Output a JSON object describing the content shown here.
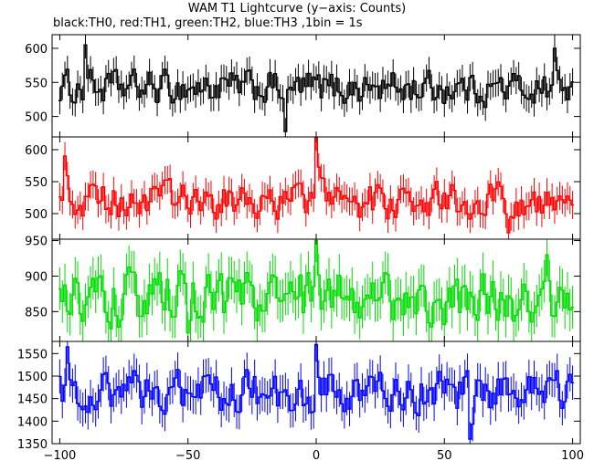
{
  "title": "WAM T1 Lightcurve (y−axis: Counts)",
  "subtitle": "black:TH0, red:TH1, green:TH2, blue:TH3 ,1bin = 1s",
  "chart_data": [
    {
      "type": "line",
      "series_label": "TH0",
      "color": "#000000",
      "xlim": [
        -103,
        103
      ],
      "ylim": [
        470,
        620
      ],
      "yticks": [
        500,
        550,
        600
      ],
      "xticks": [
        -100,
        -50,
        0,
        50,
        100
      ],
      "x_step": 1,
      "x_start": -100,
      "mean": 542,
      "error": 20,
      "error_units": "counts",
      "features": [
        {
          "x": -90,
          "y": 605
        },
        {
          "x": -12,
          "y": 478
        },
        {
          "x": 93,
          "y": 600
        }
      ],
      "grid": false
    },
    {
      "type": "line",
      "series_label": "TH1",
      "color": "#ff0000",
      "xlim": [
        -103,
        103
      ],
      "ylim": [
        460,
        620
      ],
      "yticks": [
        500,
        550,
        600
      ],
      "xticks": [
        -100,
        -50,
        0,
        50,
        100
      ],
      "x_step": 1,
      "x_start": -100,
      "mean": 520,
      "error": 22,
      "error_units": "counts",
      "features": [
        {
          "x": -98,
          "y": 590
        },
        {
          "x": 0,
          "y": 620
        },
        {
          "x": 75,
          "y": 470
        }
      ],
      "grid": false
    },
    {
      "type": "line",
      "series_label": "TH2",
      "color": "#00dd00",
      "xlim": [
        -103,
        103
      ],
      "ylim": [
        808,
        952
      ],
      "yticks": [
        850,
        900,
        950
      ],
      "xticks": [
        -100,
        -50,
        0,
        50,
        100
      ],
      "x_step": 1,
      "x_start": -100,
      "mean": 868,
      "error": 30,
      "error_units": "counts",
      "features": [
        {
          "x": 0,
          "y": 950
        },
        {
          "x": 90,
          "y": 930
        },
        {
          "x": -50,
          "y": 820
        }
      ],
      "grid": false
    },
    {
      "type": "line",
      "series_label": "TH3",
      "color": "#0000ff",
      "xlim": [
        -103,
        103
      ],
      "ylim": [
        1350,
        1577
      ],
      "yticks": [
        1350,
        1400,
        1450,
        1500,
        1550
      ],
      "xticks": [
        -100,
        -50,
        0,
        50,
        100
      ],
      "x_step": 1,
      "x_start": -100,
      "mean": 1462,
      "error": 38,
      "error_units": "counts",
      "features": [
        {
          "x": -97,
          "y": 1565
        },
        {
          "x": 0,
          "y": 1570
        },
        {
          "x": 60,
          "y": 1360
        }
      ],
      "grid": false
    }
  ]
}
